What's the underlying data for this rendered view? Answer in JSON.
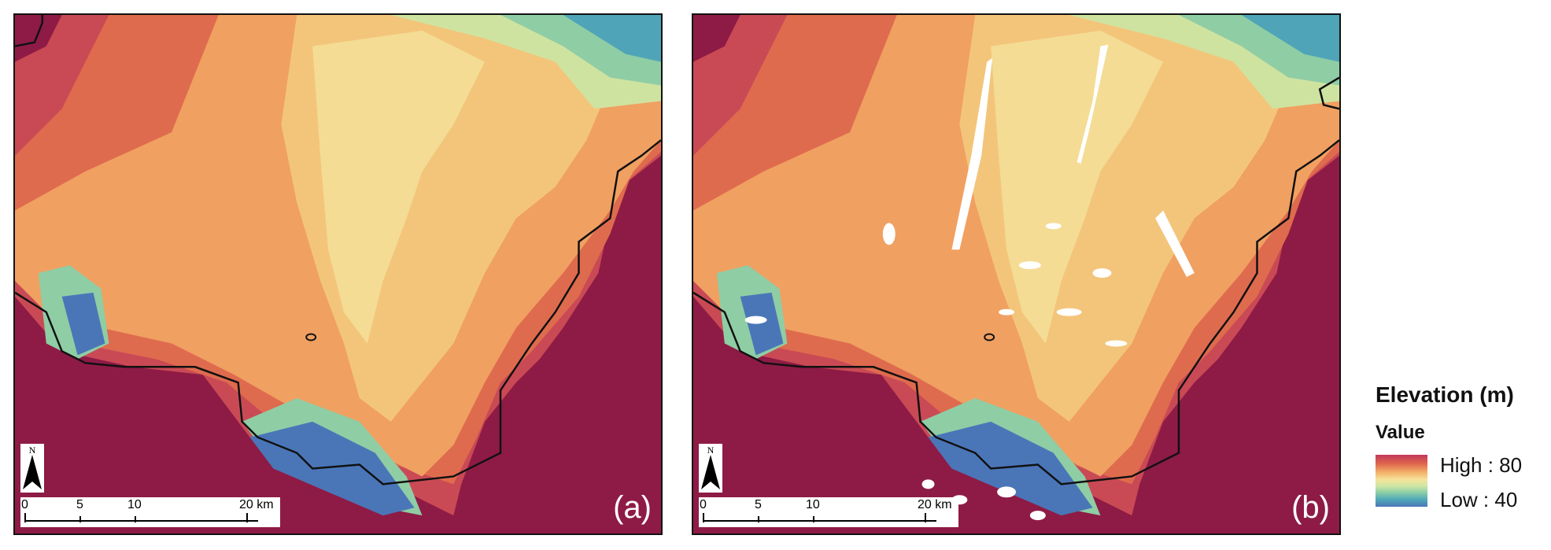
{
  "panels": [
    {
      "label": "(a)"
    },
    {
      "label": "(b)"
    }
  ],
  "north_arrow": {
    "letter": "N"
  },
  "scalebar": {
    "ticks": [
      "0",
      "5",
      "10",
      "20 km"
    ]
  },
  "legend": {
    "title": "Elevation (m)",
    "subtitle": "Value",
    "high_label": "High : 80",
    "low_label": "Low : 40",
    "colors": [
      "#c2385a",
      "#e0694e",
      "#f4b26a",
      "#f5e39b",
      "#cfe6a4",
      "#8fd0a6",
      "#4fa9b8",
      "#4a76b8"
    ]
  },
  "colors": {
    "background_lowland": "#8e1b45",
    "coastline": "#111111",
    "no_data": "#ffffff"
  }
}
